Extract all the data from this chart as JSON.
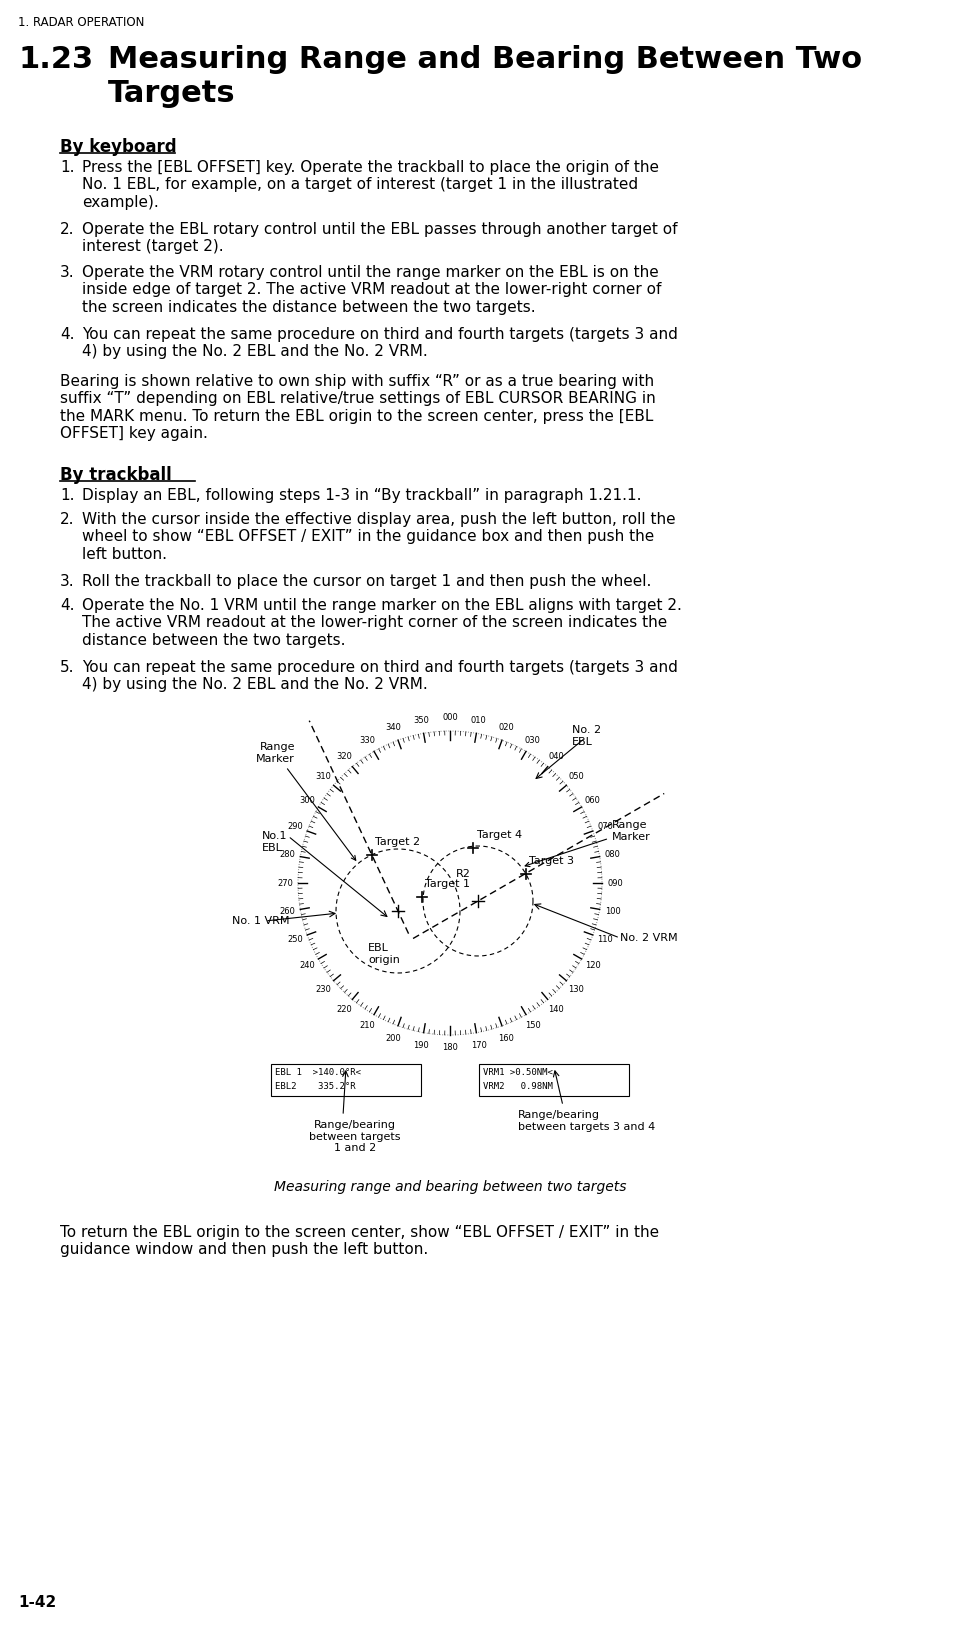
{
  "page_header": "1. RADAR OPERATION",
  "section_num": "1.23",
  "section_title": "Measuring Range and Bearing Between Two\nTargets",
  "by_keyboard_title": "By keyboard",
  "keyboard_steps": [
    "Press the [EBL OFFSET] key. Operate the trackball to place the origin of the\nNo. 1 EBL, for example, on a target of interest (target 1 in the illustrated\nexample).",
    "Operate the EBL rotary control until the EBL passes through another target of\ninterest (target 2).",
    "Operate the VRM rotary control until the range marker on the EBL is on the\ninside edge of target 2. The active VRM readout at the lower-right corner of\nthe screen indicates the distance between the two targets.",
    "You can repeat the same procedure on third and fourth targets (targets 3 and\n4) by using the No. 2 EBL and the No. 2 VRM."
  ],
  "keyboard_note": "Bearing is shown relative to own ship with suffix “R” or as a true bearing with\nsuffix “T” depending on EBL relative/true settings of EBL CURSOR BEARING in\nthe MARK menu. To return the EBL origin to the screen center, press the [EBL\nOFFSET] key again.",
  "by_trackball_title": "By trackball",
  "trackball_steps": [
    "Display an EBL, following steps 1-3 in “By trackball” in paragraph 1.21.1.",
    "With the cursor inside the effective display area, push the left button, roll the\nwheel to show “EBL OFFSET / EXIT” in the guidance box and then push the\nleft button.",
    "Roll the trackball to place the cursor on target 1 and then push the wheel.",
    "Operate the No. 1 VRM until the range marker on the EBL aligns with target 2.\nThe active VRM readout at the lower-right corner of the screen indicates the\ndistance between the two targets.",
    "You can repeat the same procedure on third and fourth targets (targets 3 and\n4) by using the No. 2 EBL and the No. 2 VRM."
  ],
  "figure_caption": "Measuring range and bearing between two targets",
  "footer_note": "To return the EBL origin to the screen center, show “EBL OFFSET / EXIT” in the\nguidance window and then push the left button.",
  "page_number": "1-42",
  "bg_color": "#ffffff",
  "text_color": "#000000"
}
